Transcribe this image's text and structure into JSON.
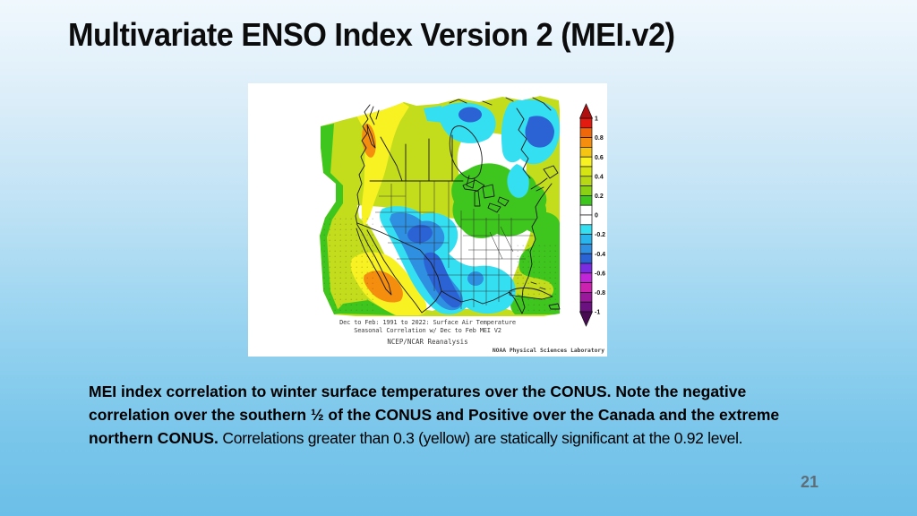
{
  "slide": {
    "title": "Multivariate ENSO Index Version 2 (MEI.v2)",
    "page_number": "21"
  },
  "figure": {
    "description": "Filled contour correlation map of North America",
    "caption_line1": "Dec to Feb: 1991 to 2022: Surface Air Temperature",
    "caption_line2": "Seasonal Correlation w/ Dec to Feb MEI V2",
    "caption_line3": "NCEP/NCAR Reanalysis",
    "credit": "NOAA Physical Sciences Laboratory",
    "colorbar": {
      "ticks": [
        "1",
        "0.8",
        "0.6",
        "0.4",
        "0.2",
        "0",
        "-0.2",
        "-0.4",
        "-0.6",
        "-0.8",
        "-1"
      ],
      "cell_colors": [
        "#e31a10",
        "#f0670a",
        "#f58e0e",
        "#f6c412",
        "#f8f222",
        "#d6e414",
        "#b8d816",
        "#8ad014",
        "#3fc61e",
        "#ffffff",
        "#ffffff",
        "#35dff2",
        "#2ab4ec",
        "#2f8fe0",
        "#2b62d4",
        "#7a2ce0",
        "#c026d8",
        "#cc22b0",
        "#99189c",
        "#6b1180"
      ],
      "arrow_top_color": "#b01010",
      "arrow_bottom_color": "#470c52"
    }
  },
  "body_text": {
    "line1_bold": "MEI index correlation to winter surface temperatures over the CONUS.  Note the negative",
    "line2_bold": "correlation over the southern ½ of the CONUS and Positive over the Canada and the extreme",
    "line3_bold": "northern CONUS.",
    "line3_normal": "  Correlations greater than 0.3 (yellow) are statically significant at the 0.92 level."
  },
  "colors": {
    "background_top": "#f0f8fd",
    "background_bottom": "#6cbfe8",
    "title_color": "#0c0c0c",
    "page_number_color": "#5e6e79",
    "map_positive_yellow": "#f8f222",
    "map_positive_green": "#3fc61e",
    "map_negative_cyan": "#35dff2",
    "map_negative_blue": "#2f8fe0"
  }
}
